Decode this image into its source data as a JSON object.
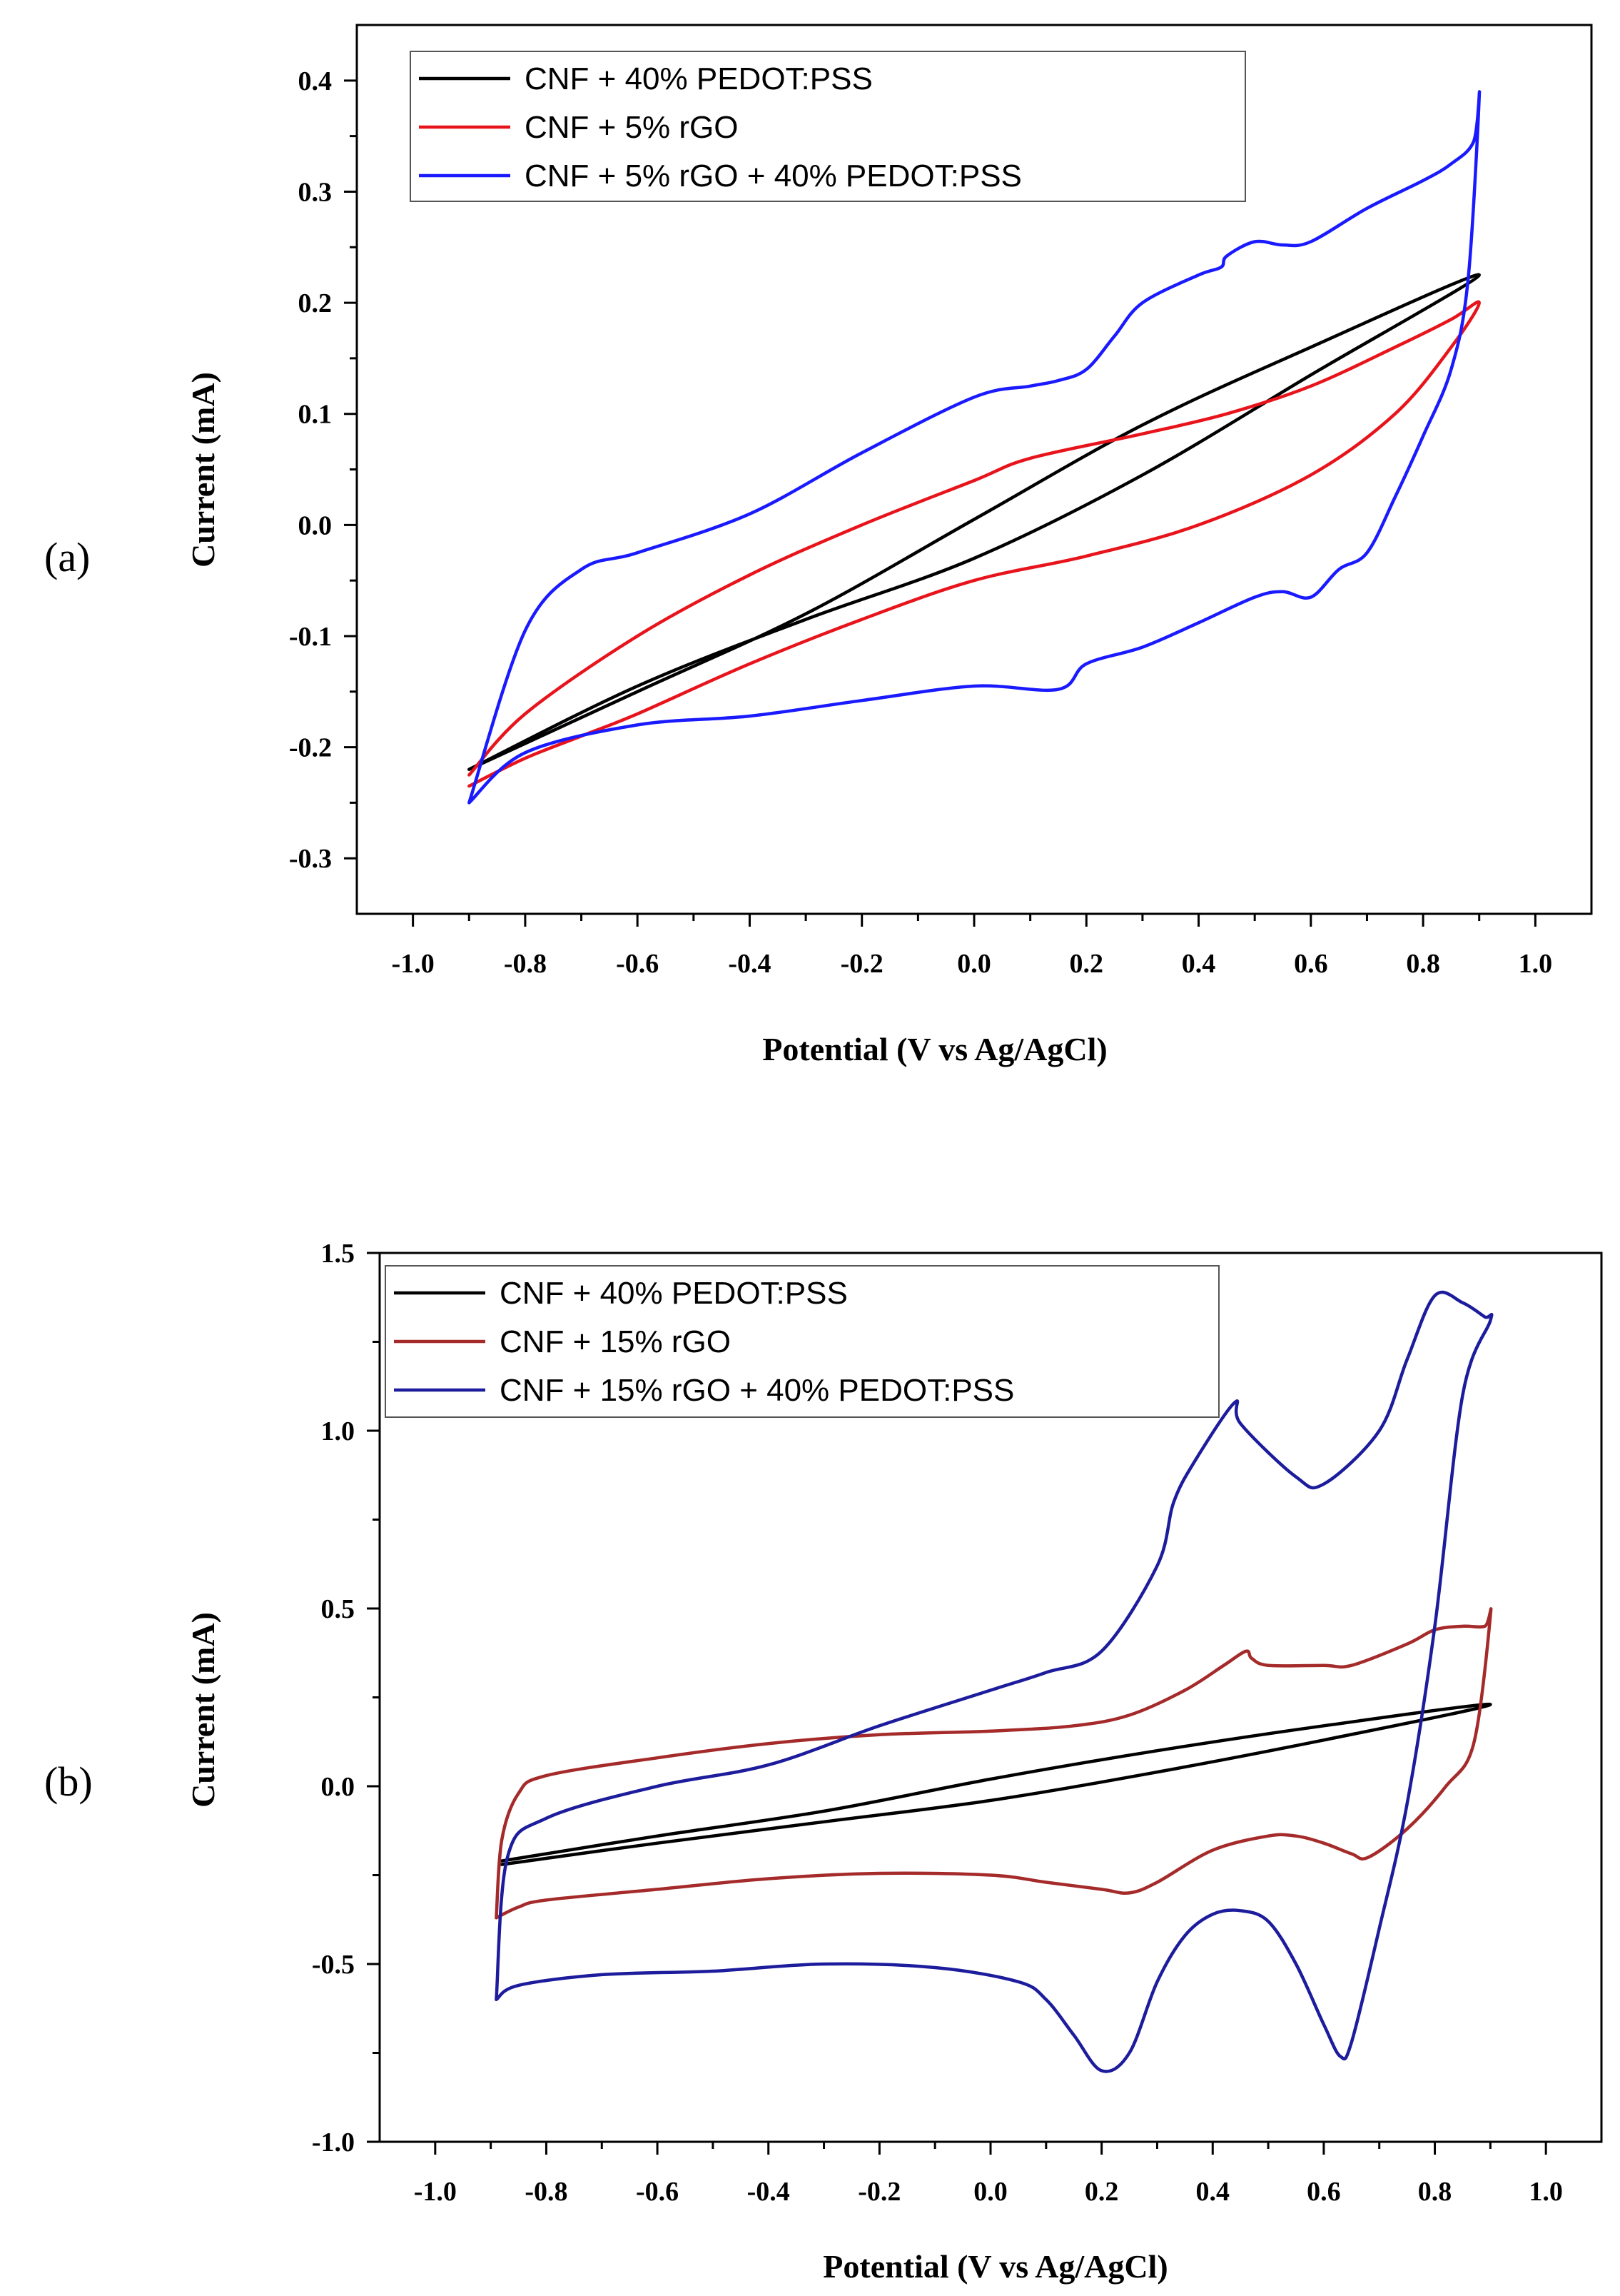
{
  "chart_data": [
    {
      "panel_label": "(a)",
      "type": "line",
      "title": "",
      "xlabel": "Potential (V vs Ag/AgCl)",
      "ylabel": "Current (mA)",
      "xlim": [
        -1.1,
        1.1
      ],
      "ylim": [
        -0.35,
        0.45
      ],
      "xticks": [
        -1.0,
        -0.8,
        -0.6,
        -0.4,
        -0.2,
        0.0,
        0.2,
        0.4,
        0.6,
        0.8,
        1.0
      ],
      "xtick_labels": [
        "-1.0",
        "-0.8",
        "-0.6",
        "-0.4",
        "-0.2",
        "0.0",
        "0.2",
        "0.4",
        "0.6",
        "0.8",
        "1.0"
      ],
      "yticks": [
        -0.3,
        -0.2,
        -0.1,
        0.0,
        0.1,
        0.2,
        0.3,
        0.4
      ],
      "ytick_labels": [
        "-0.3",
        "-0.2",
        "-0.1",
        "0.0",
        "0.1",
        "0.2",
        "0.3",
        "0.4"
      ],
      "legend_position": "top-left",
      "series": [
        {
          "name": "CNF + 40% PEDOT:PSS",
          "color": "#000000",
          "x": [
            -0.9,
            -0.6,
            -0.3,
            0.0,
            0.3,
            0.6,
            0.9,
            0.6,
            0.3,
            0.0,
            -0.3,
            -0.6,
            -0.9
          ],
          "y": [
            -0.22,
            -0.145,
            -0.085,
            -0.03,
            0.045,
            0.135,
            0.225,
            0.16,
            0.09,
            0.005,
            -0.08,
            -0.15,
            -0.22
          ]
        },
        {
          "name": "CNF + 5% rGO",
          "color": "#e8141c",
          "x": [
            -0.9,
            -0.8,
            -0.7,
            -0.6,
            -0.4,
            -0.2,
            0.0,
            0.2,
            0.4,
            0.6,
            0.75,
            0.85,
            0.9,
            0.85,
            0.75,
            0.6,
            0.45,
            0.3,
            0.1,
            0.0,
            -0.2,
            -0.4,
            -0.6,
            -0.8,
            -0.9
          ],
          "y": [
            -0.235,
            -0.21,
            -0.19,
            -0.17,
            -0.125,
            -0.085,
            -0.05,
            -0.028,
            0.0,
            0.045,
            0.1,
            0.16,
            0.2,
            0.185,
            0.16,
            0.125,
            0.1,
            0.082,
            0.06,
            0.04,
            0.0,
            -0.045,
            -0.1,
            -0.17,
            -0.225
          ]
        },
        {
          "name": "CNF + 5% rGO + 40% PEDOT:PSS",
          "color": "#1a1aff",
          "x": [
            -0.9,
            -0.8,
            -0.6,
            -0.4,
            -0.2,
            0.0,
            0.15,
            0.2,
            0.3,
            0.4,
            0.5,
            0.55,
            0.6,
            0.65,
            0.7,
            0.75,
            0.8,
            0.85,
            0.88,
            0.9,
            0.89,
            0.85,
            0.8,
            0.7,
            0.6,
            0.55,
            0.5,
            0.45,
            0.44,
            0.4,
            0.3,
            0.25,
            0.2,
            0.15,
            0.1,
            0.0,
            -0.2,
            -0.4,
            -0.6,
            -0.7,
            -0.8,
            -0.9
          ],
          "y": [
            -0.25,
            -0.205,
            -0.18,
            -0.172,
            -0.158,
            -0.145,
            -0.148,
            -0.125,
            -0.11,
            -0.088,
            -0.065,
            -0.06,
            -0.065,
            -0.04,
            -0.025,
            0.025,
            0.08,
            0.14,
            0.22,
            0.385,
            0.345,
            0.325,
            0.31,
            0.285,
            0.255,
            0.252,
            0.255,
            0.242,
            0.232,
            0.225,
            0.2,
            0.17,
            0.14,
            0.13,
            0.125,
            0.115,
            0.065,
            0.01,
            -0.025,
            -0.04,
            -0.095,
            -0.25
          ]
        }
      ]
    },
    {
      "panel_label": "(b)",
      "type": "line",
      "title": "",
      "xlabel": "Potential (V vs Ag/AgCl)",
      "ylabel": "Current (mA)",
      "xlim": [
        -1.1,
        1.1
      ],
      "ylim": [
        -1.0,
        1.5
      ],
      "xticks": [
        -1.0,
        -0.8,
        -0.6,
        -0.4,
        -0.2,
        0.0,
        0.2,
        0.4,
        0.6,
        0.8,
        1.0
      ],
      "xtick_labels": [
        "-1.0",
        "-0.8",
        "-0.6",
        "-0.4",
        "-0.2",
        "0.0",
        "0.2",
        "0.4",
        "0.6",
        "0.8",
        "1.0"
      ],
      "yticks": [
        -1.0,
        -0.5,
        0.0,
        0.5,
        1.0,
        1.5
      ],
      "ytick_labels": [
        "-1.0",
        "-0.5",
        "0.0",
        "0.5",
        "1.0",
        "1.5"
      ],
      "legend_position": "top-left",
      "series": [
        {
          "name": "CNF + 40% PEDOT:PSS",
          "color": "#000000",
          "x": [
            -0.88,
            -0.6,
            -0.3,
            0.0,
            0.3,
            0.6,
            0.9,
            0.6,
            0.3,
            0.0,
            -0.3,
            -0.6,
            -0.88
          ],
          "y": [
            -0.22,
            -0.16,
            -0.1,
            -0.04,
            0.04,
            0.13,
            0.23,
            0.17,
            0.1,
            0.02,
            -0.07,
            -0.14,
            -0.21
          ]
        },
        {
          "name": "CNF + 15% rGO",
          "color": "#a52a2a",
          "x": [
            -0.89,
            -0.85,
            -0.8,
            -0.6,
            -0.4,
            -0.2,
            0.0,
            0.1,
            0.2,
            0.25,
            0.3,
            0.4,
            0.5,
            0.55,
            0.6,
            0.65,
            0.68,
            0.75,
            0.82,
            0.87,
            0.9,
            0.89,
            0.85,
            0.8,
            0.75,
            0.65,
            0.6,
            0.5,
            0.47,
            0.46,
            0.42,
            0.35,
            0.25,
            0.15,
            0.0,
            -0.2,
            -0.4,
            -0.6,
            -0.8,
            -0.85,
            -0.88,
            -0.89
          ],
          "y": [
            -0.37,
            -0.34,
            -0.32,
            -0.29,
            -0.26,
            -0.245,
            -0.25,
            -0.27,
            -0.29,
            -0.3,
            -0.27,
            -0.18,
            -0.14,
            -0.14,
            -0.16,
            -0.19,
            -0.2,
            -0.12,
            0.0,
            0.12,
            0.48,
            0.45,
            0.45,
            0.44,
            0.4,
            0.34,
            0.34,
            0.34,
            0.36,
            0.38,
            0.34,
            0.27,
            0.2,
            0.17,
            0.155,
            0.145,
            0.12,
            0.08,
            0.03,
            -0.02,
            -0.15,
            -0.37
          ]
        },
        {
          "name": "CNF + 15% rGO + 40% PEDOT:PSS",
          "color": "#1c1c9c",
          "x": [
            -0.89,
            -0.85,
            -0.7,
            -0.5,
            -0.3,
            -0.1,
            0.05,
            0.1,
            0.15,
            0.2,
            0.25,
            0.3,
            0.35,
            0.4,
            0.45,
            0.5,
            0.55,
            0.6,
            0.63,
            0.65,
            0.7,
            0.75,
            0.8,
            0.85,
            0.9,
            0.89,
            0.85,
            0.8,
            0.75,
            0.7,
            0.6,
            0.55,
            0.45,
            0.44,
            0.37,
            0.33,
            0.3,
            0.2,
            0.1,
            0.0,
            -0.2,
            -0.4,
            -0.6,
            -0.8,
            -0.87,
            -0.89
          ],
          "y": [
            -0.6,
            -0.56,
            -0.53,
            -0.52,
            -0.5,
            -0.51,
            -0.55,
            -0.6,
            -0.7,
            -0.8,
            -0.75,
            -0.55,
            -0.42,
            -0.36,
            -0.35,
            -0.38,
            -0.5,
            -0.67,
            -0.76,
            -0.72,
            -0.4,
            -0.05,
            0.45,
            1.1,
            1.31,
            1.32,
            1.36,
            1.38,
            1.2,
            1.0,
            0.85,
            0.87,
            1.02,
            1.08,
            0.92,
            0.8,
            0.62,
            0.38,
            0.32,
            0.27,
            0.17,
            0.06,
            0.0,
            -0.09,
            -0.2,
            -0.6
          ]
        }
      ]
    }
  ]
}
